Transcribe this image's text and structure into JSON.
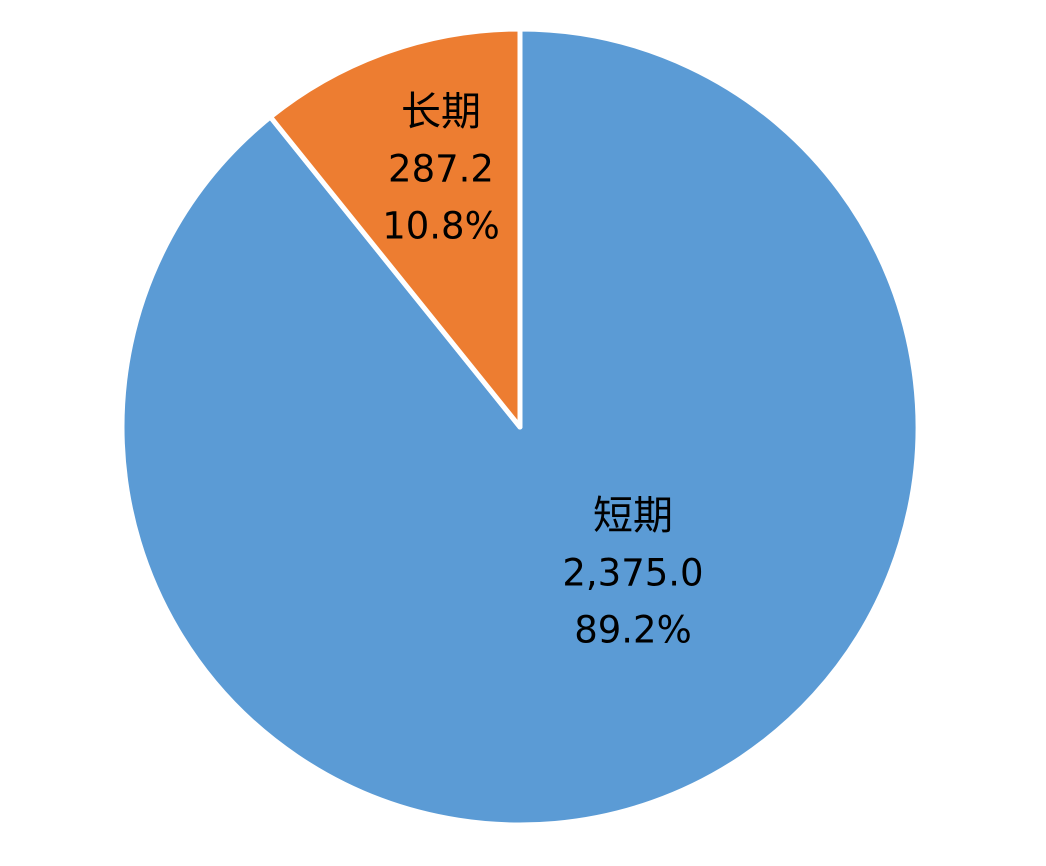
{
  "chart_data": {
    "type": "pie",
    "title": "",
    "start_angle_deg": 0,
    "direction": "clockwise",
    "slice_border_color": "#ffffff",
    "slices": [
      {
        "name": "短期",
        "value": 2375.0,
        "value_label": "2,375.0",
        "percent_label": "89.2%",
        "color": "#5B9BD5"
      },
      {
        "name": "长期",
        "value": 287.2,
        "value_label": "287.2",
        "percent_label": "10.8%",
        "color": "#ED7D31"
      }
    ],
    "legend": "none"
  }
}
